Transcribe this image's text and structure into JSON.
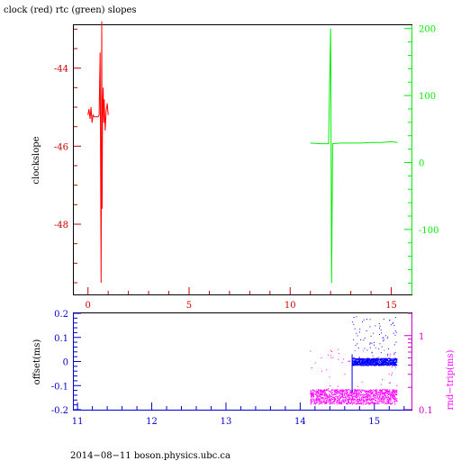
{
  "chart_data": [
    {
      "type": "line",
      "title": "clock (red) rtc (green) slopes",
      "ylabel": "clockslope",
      "xlim": [
        -0.7,
        16
      ],
      "ylim_left": [
        -49.8,
        -42.9
      ],
      "ylim_right": [
        -197,
        205
      ],
      "x_ticks": [
        "0",
        "5",
        "10",
        "15"
      ],
      "y_ticks_left": [
        "-44",
        "-46",
        "-48"
      ],
      "y_ticks_right": [
        "200",
        "100",
        "0",
        "-100"
      ],
      "colors": {
        "clock": "#ff0000",
        "rtc": "#00ee00",
        "axes": "#cc0000"
      },
      "grid": false,
      "series": [
        {
          "name": "clock",
          "axis": "left",
          "x": [
            0.0,
            0.05,
            0.1,
            0.15,
            0.2,
            0.25,
            0.3,
            0.35,
            0.4,
            0.45,
            0.5,
            0.55,
            0.6,
            0.65,
            0.68,
            0.7,
            0.72,
            0.75,
            0.78,
            0.8,
            0.85,
            0.9,
            0.95,
            1.0
          ],
          "y": [
            -45.2,
            -45.05,
            -45.3,
            -45.0,
            -45.4,
            -45.2,
            -45.25,
            -45.25,
            -45.25,
            -45.25,
            -45.25,
            -45.2,
            -43.6,
            -49.5,
            -42.8,
            -47.6,
            -45.0,
            -44.5,
            -45.4,
            -44.8,
            -45.6,
            -45.1,
            -44.9,
            -45.2
          ]
        },
        {
          "name": "rtc",
          "axis": "right",
          "x": [
            11.0,
            11.5,
            11.9,
            12.0,
            12.05,
            12.1,
            12.5,
            13.0,
            13.5,
            14.0,
            14.5,
            15.0,
            15.3
          ],
          "y": [
            29,
            28,
            28,
            200,
            -180,
            28,
            29,
            29,
            29,
            30,
            30,
            31,
            30
          ]
        }
      ]
    },
    {
      "type": "scatter",
      "ylabel_left": "offset(ms)",
      "ylabel_right": "rnd−trip(ms)",
      "xlim": [
        10.95,
        15.5
      ],
      "ylim_left": [
        -0.2,
        0.2
      ],
      "ylim_right_log": [
        0.1,
        2.0
      ],
      "x_ticks": [
        "11",
        "12",
        "13",
        "14",
        "15"
      ],
      "y_ticks_left": [
        "0.2",
        "0.1",
        "0",
        "-0.1",
        "-0.2"
      ],
      "y_ticks_right": [
        "1",
        "0.1"
      ],
      "colors": {
        "offset": "#0000ff",
        "rndtrip": "#ff00ff",
        "axes_left": "#0000cc",
        "axes_right": "#cc00cc"
      },
      "grid": false,
      "series": [
        {
          "name": "offset",
          "axis": "left",
          "x_range": [
            14.7,
            15.3
          ],
          "y_center": 0.0,
          "y_band": 0.015,
          "y_outliers_up_to": 0.19
        },
        {
          "name": "rnd-trip",
          "axis": "right",
          "x_range": [
            14.13,
            15.3
          ],
          "y_center": 0.15,
          "y_band_low": 0.12,
          "y_band_high": 0.19,
          "y_outliers_up_to": 0.7
        }
      ]
    }
  ],
  "footer": "2014−08−11 boson.physics.ubc.ca"
}
